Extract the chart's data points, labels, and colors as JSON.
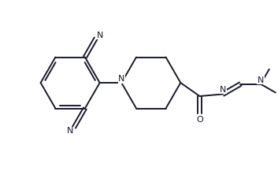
{
  "background_color": "#ffffff",
  "line_color": "#1a1a2e",
  "line_width": 1.4,
  "figsize": [
    3.53,
    2.17
  ],
  "dpi": 100,
  "xlim": [
    0,
    353
  ],
  "ylim": [
    0,
    217
  ]
}
